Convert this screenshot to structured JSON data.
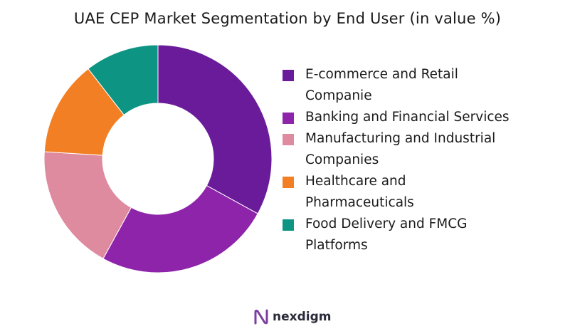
{
  "chart_data": {
    "type": "pie",
    "title": "UAE CEP Market Segmentation by End User (in value %)",
    "donut": true,
    "legend_position": "right",
    "slices": [
      {
        "label": "E-commerce and Retail\nCompanie",
        "value": 33,
        "color": "#6a1b9a"
      },
      {
        "label": "Banking and Financial Services",
        "value": 25,
        "color": "#8e24aa"
      },
      {
        "label": "Manufacturing and Industrial\nCompanies",
        "value": 18,
        "color": "#de8a9f"
      },
      {
        "label": "Healthcare and\nPharmaceuticals",
        "value": 13.5,
        "color": "#f37f24"
      },
      {
        "label": "Food Delivery and FMCG\nPlatforms",
        "value": 10.5,
        "color": "#0e9483"
      }
    ]
  },
  "logo": {
    "text": "nexdigm",
    "accent": "#7b3fa0"
  }
}
